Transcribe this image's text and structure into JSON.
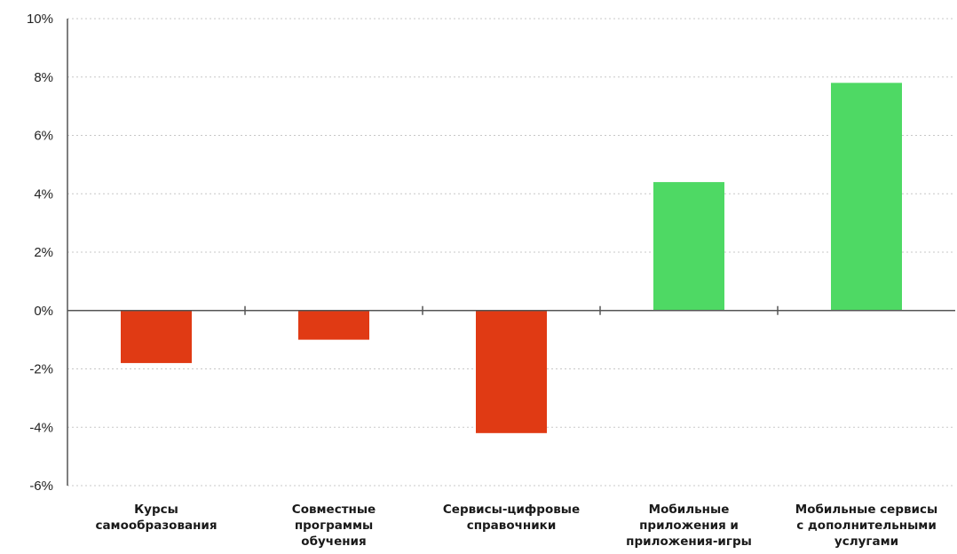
{
  "chart_data": {
    "type": "bar",
    "categories": [
      [
        "Курсы",
        "самообразования"
      ],
      [
        "Совместные",
        "программы",
        "обучения"
      ],
      [
        "Сервисы-цифровые",
        "справочники"
      ],
      [
        "Мобильные",
        "приложения и",
        "приложения-игры"
      ],
      [
        "Мобильные сервисы",
        "с дополнительными",
        "услугами"
      ]
    ],
    "values": [
      -1.8,
      -1.0,
      -4.2,
      4.4,
      7.8
    ],
    "colors": {
      "negative": "#e03a14",
      "positive": "#4ed964"
    },
    "ylim": [
      -6,
      10
    ],
    "yticks": [
      10,
      8,
      6,
      4,
      2,
      0,
      -2,
      -4,
      -6
    ],
    "tick_suffix": "%",
    "grid": true,
    "legend": "none"
  }
}
